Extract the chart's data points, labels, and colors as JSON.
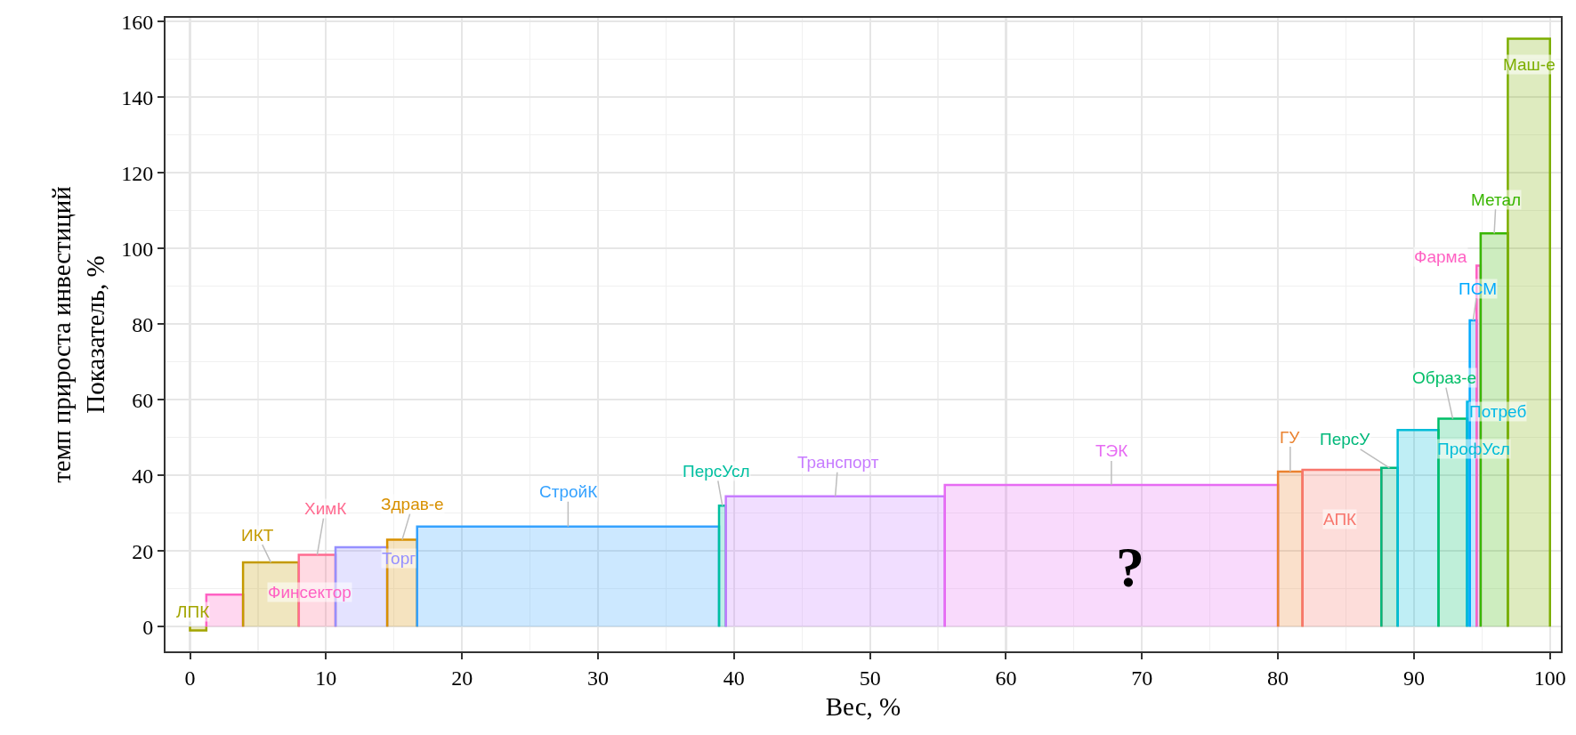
{
  "chart_data": {
    "type": "area",
    "xlabel": "Вес, %",
    "ylabel": "темп прироста инвестиций\nПоказатель, %",
    "xlim": [
      -1.8,
      100.8
    ],
    "ylim": [
      -6.5,
      161
    ],
    "xticks": [
      0,
      10,
      20,
      30,
      40,
      50,
      60,
      70,
      80,
      90,
      100
    ],
    "yticks": [
      0,
      20,
      40,
      60,
      80,
      100,
      120,
      140,
      160
    ],
    "grid": true,
    "legend": false,
    "annotations": [
      "?"
    ],
    "series": [
      {
        "name": "ЛПК",
        "color": "#a3a500",
        "x": [
          0,
          0,
          1.2,
          1.2
        ],
        "values": [
          0,
          -1,
          -1,
          0
        ]
      },
      {
        "name": "Финсектор",
        "color": "#ff61c3",
        "x": [
          1.2,
          1.2,
          3.9,
          3.9
        ],
        "values": [
          0,
          8.5,
          8.5,
          0
        ]
      },
      {
        "name": "ИКТ",
        "color": "#c49a00",
        "x": [
          3.9,
          3.9,
          8.0,
          8.0
        ],
        "values": [
          0,
          17,
          17,
          0
        ]
      },
      {
        "name": "ХимК",
        "color": "#ff6c91",
        "x": [
          8.0,
          8.0,
          10.7,
          10.7
        ],
        "values": [
          0,
          19,
          19,
          0
        ]
      },
      {
        "name": "Торг",
        "color": "#9590ff",
        "x": [
          10.7,
          10.7,
          14.5,
          14.5
        ],
        "values": [
          0,
          21,
          21,
          0
        ]
      },
      {
        "name": "Здрав-е",
        "color": "#d89000",
        "x": [
          14.5,
          14.5,
          16.7,
          16.7
        ],
        "values": [
          0,
          23,
          23,
          0
        ]
      },
      {
        "name": "СтройК",
        "color": "#35a2ff",
        "x": [
          16.7,
          16.7,
          38.9,
          38.9
        ],
        "values": [
          0,
          26.5,
          26.5,
          0
        ]
      },
      {
        "name": "ПерсУсл",
        "color": "#00bfa0",
        "x": [
          38.9,
          38.9,
          39.4,
          39.4
        ],
        "values": [
          0,
          32,
          32,
          0
        ]
      },
      {
        "name": "Транспорт",
        "color": "#c77cff",
        "x": [
          39.4,
          39.4,
          55.5,
          55.5
        ],
        "values": [
          0,
          34.5,
          34.5,
          0
        ]
      },
      {
        "name": "ТЭК",
        "color": "#e76bf3",
        "x": [
          55.5,
          55.5,
          80.0,
          80.0
        ],
        "values": [
          0,
          37.5,
          37.5,
          0
        ]
      },
      {
        "name": "ГУ",
        "color": "#ea8331",
        "x": [
          80.0,
          80.0,
          81.8,
          81.8
        ],
        "values": [
          0,
          41,
          41,
          0
        ]
      },
      {
        "name": "АПК",
        "color": "#f8766d",
        "x": [
          81.8,
          81.8,
          87.6,
          87.6
        ],
        "values": [
          0,
          41.5,
          41.5,
          0
        ]
      },
      {
        "name": "ПерсУ",
        "color": "#00b87a",
        "x": [
          87.6,
          87.6,
          88.8,
          88.8
        ],
        "values": [
          0,
          42,
          42,
          0
        ]
      },
      {
        "name": "ПрофУсл",
        "color": "#00bcd8",
        "x": [
          88.8,
          88.8,
          91.8,
          91.8
        ],
        "values": [
          0,
          52,
          52,
          0
        ]
      },
      {
        "name": "Образ-е",
        "color": "#00be67",
        "x": [
          91.8,
          91.8,
          93.9,
          93.9
        ],
        "values": [
          0,
          55,
          55,
          0
        ]
      },
      {
        "name": "Потреб",
        "color": "#00b8e7",
        "x": [
          93.9,
          93.9,
          94.1,
          94.1
        ],
        "values": [
          0,
          59.5,
          59.5,
          0
        ]
      },
      {
        "name": "ПСМ",
        "color": "#00a9ff",
        "x": [
          94.1,
          94.1,
          94.6,
          94.6
        ],
        "values": [
          0,
          81,
          81,
          0
        ]
      },
      {
        "name": "Фарма",
        "color": "#ff61c3",
        "x": [
          94.6,
          94.6,
          94.9,
          94.9
        ],
        "values": [
          0,
          95.5,
          95.5,
          0
        ]
      },
      {
        "name": "Метал",
        "color": "#39b600",
        "x": [
          94.9,
          94.9,
          96.9,
          96.9
        ],
        "values": [
          0,
          104,
          104,
          0
        ]
      },
      {
        "name": "Маш-е",
        "color": "#7cae00",
        "x": [
          96.9,
          96.9,
          100,
          100
        ],
        "values": [
          0,
          155.5,
          155.5,
          0
        ]
      }
    ]
  }
}
